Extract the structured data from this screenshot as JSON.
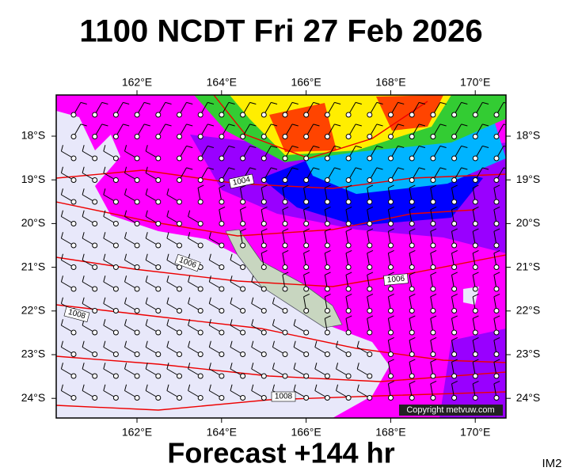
{
  "header": {
    "title": "1100 NCDT Fri 27 Feb 2026"
  },
  "map": {
    "longitude_labels": [
      "162°E",
      "164°E",
      "166°E",
      "168°E",
      "170°E"
    ],
    "latitude_labels": [
      "18°S",
      "19°S",
      "20°S",
      "21°S",
      "22°S",
      "23°S",
      "24°S"
    ],
    "isobar_labels": [
      "1004",
      "1006",
      "1006",
      "1008",
      "1008"
    ],
    "copyright": "Copyright metvuw.com"
  },
  "footer": {
    "forecast": "Forecast +144 hr",
    "code": "IM2"
  }
}
